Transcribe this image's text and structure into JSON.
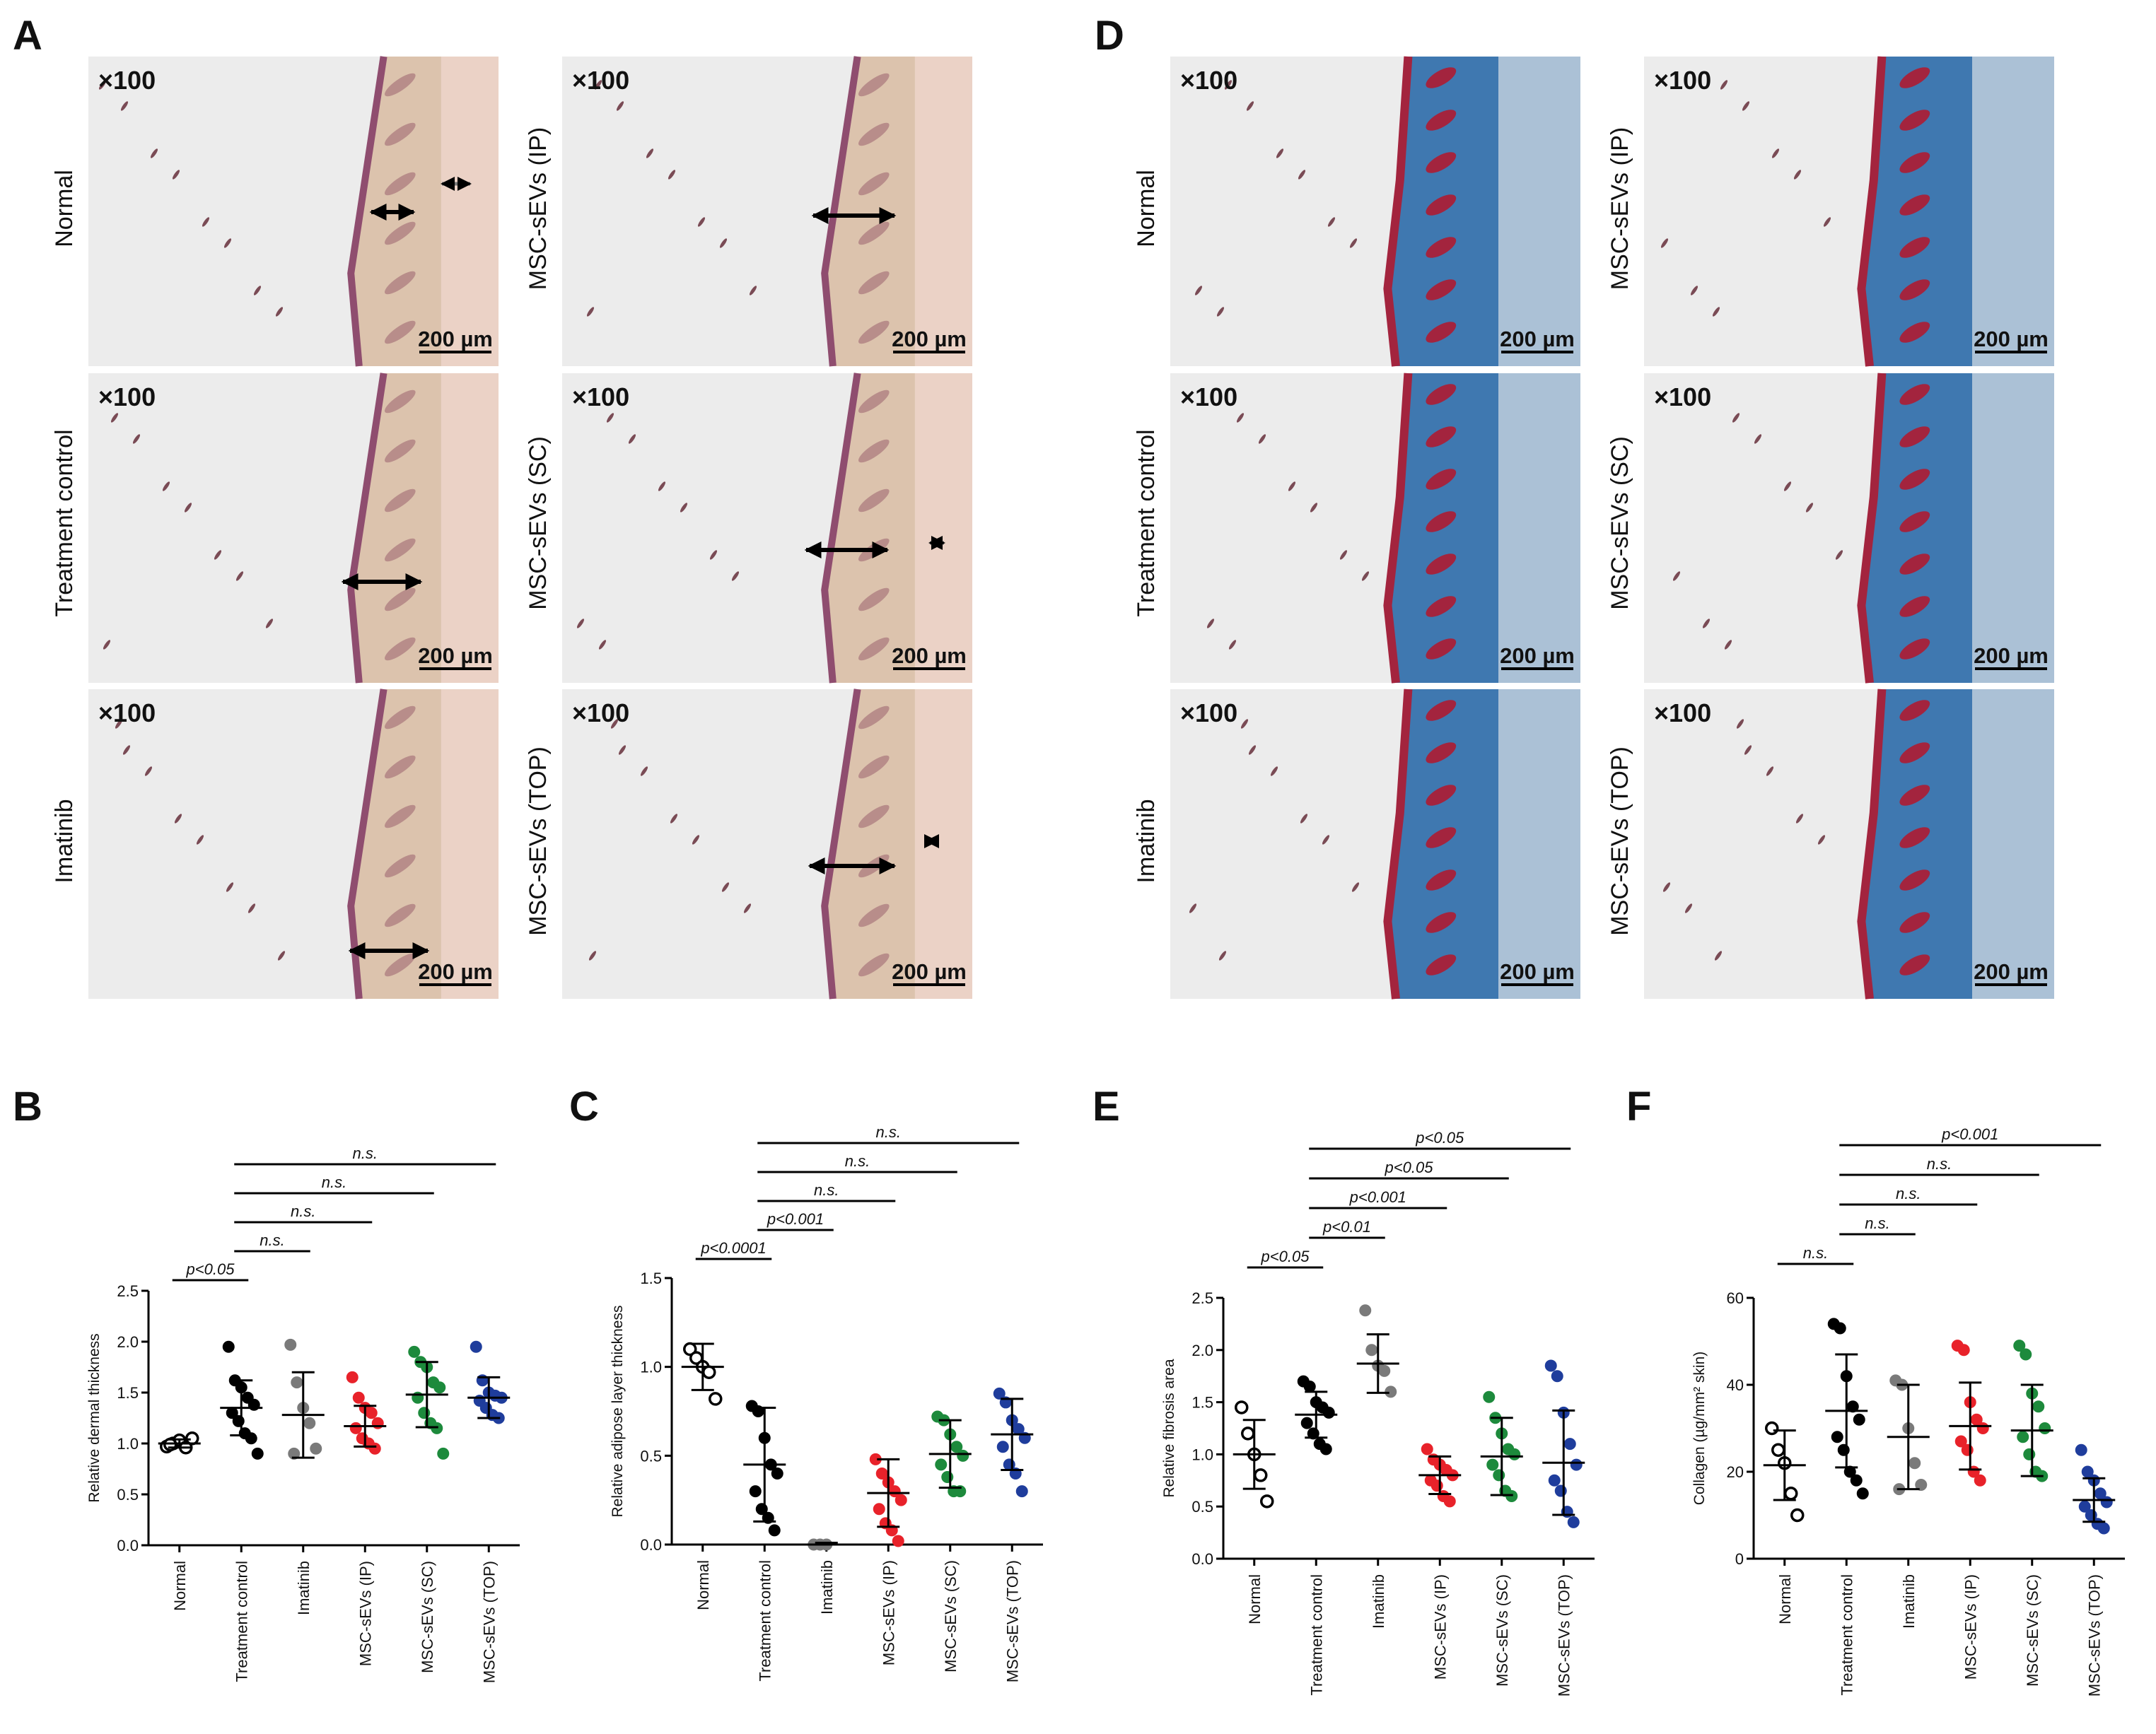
{
  "panel_letters": [
    "A",
    "B",
    "C",
    "D",
    "E",
    "F"
  ],
  "histology": {
    "magnification": "×100",
    "scale_bar": "200 µm",
    "he_rows_left": [
      "Normal",
      "Treatment control",
      "Imatinib"
    ],
    "he_rows_right": [
      "MSC-sEVs (IP)",
      "MSC-sEVs (SC)",
      "MSC-sEVs (TOP)"
    ],
    "mt_rows_left": [
      "Normal",
      "Treatment control",
      "Imatinib"
    ],
    "mt_rows_right": [
      "MSC-sEVs (IP)",
      "MSC-sEVs (SC)",
      "MSC-sEVs (TOP)"
    ],
    "stain_colors": {
      "he_tissue": "#dcc3ad",
      "he_edge": "#8f4d6f",
      "mt_collagen": "#3f78b0",
      "mt_muscle": "#a3243e",
      "background": "#ececec"
    }
  },
  "chart_data": [
    {
      "panel": "B",
      "type": "scatter",
      "ylabel": "Relative dermal thickness",
      "ylim": [
        0,
        2.5
      ],
      "yticks": [
        "0.0",
        "0.5",
        "1.0",
        "1.5",
        "2.0",
        "2.5"
      ],
      "categories": [
        "Normal",
        "Treatment control",
        "Imatinib",
        "MSC-sEVs (IP)",
        "MSC-sEVs (SC)",
        "MSC-sEVs (TOP)"
      ],
      "colors": [
        "#000000",
        "#000000",
        "#7a7a7a",
        "#e8222a",
        "#1d8a3c",
        "#1f3d9c"
      ],
      "hollow": [
        true,
        false,
        false,
        false,
        false,
        false
      ],
      "points": [
        [
          0.97,
          1.0,
          1.03,
          0.96,
          1.05,
          0.99
        ],
        [
          1.95,
          1.62,
          1.55,
          1.45,
          1.38,
          1.3,
          1.22,
          1.1,
          1.05,
          0.9
        ],
        [
          1.97,
          1.6,
          1.35,
          1.2,
          0.95,
          0.9
        ],
        [
          1.65,
          1.45,
          1.35,
          1.3,
          1.2,
          1.15,
          1.05,
          1.0,
          0.95
        ],
        [
          1.9,
          1.8,
          1.75,
          1.6,
          1.55,
          1.45,
          1.3,
          1.2,
          1.15,
          0.9
        ],
        [
          1.95,
          1.62,
          1.5,
          1.47,
          1.45,
          1.42,
          1.35,
          1.28,
          1.25
        ]
      ],
      "mean": [
        1.0,
        1.35,
        1.28,
        1.17,
        1.48,
        1.45
      ],
      "sd": [
        0.04,
        0.27,
        0.42,
        0.2,
        0.32,
        0.2
      ],
      "sig": [
        {
          "from": 0,
          "to": 1,
          "label": "p<0.05"
        },
        {
          "from": 1,
          "to": 2,
          "label": "n.s."
        },
        {
          "from": 1,
          "to": 3,
          "label": "n.s."
        },
        {
          "from": 1,
          "to": 4,
          "label": "n.s."
        },
        {
          "from": 1,
          "to": 5,
          "label": "n.s."
        }
      ]
    },
    {
      "panel": "C",
      "type": "scatter",
      "ylabel": "Relative adipose layer thickness",
      "ylim": [
        0,
        1.5
      ],
      "yticks": [
        "0.0",
        "0.5",
        "1.0",
        "1.5"
      ],
      "categories": [
        "Normal",
        "Treatment control",
        "Imatinib",
        "MSC-sEVs (IP)",
        "MSC-sEVs (SC)",
        "MSC-sEVs (TOP)"
      ],
      "colors": [
        "#000000",
        "#000000",
        "#7a7a7a",
        "#e8222a",
        "#1d8a3c",
        "#1f3d9c"
      ],
      "hollow": [
        true,
        false,
        false,
        false,
        false,
        false
      ],
      "points": [
        [
          1.1,
          1.05,
          1.0,
          0.97,
          0.82
        ],
        [
          0.78,
          0.75,
          0.6,
          0.45,
          0.4,
          0.3,
          0.2,
          0.15,
          0.08
        ],
        [
          0.0,
          0.0,
          0.0
        ],
        [
          0.48,
          0.4,
          0.35,
          0.3,
          0.25,
          0.2,
          0.12,
          0.08,
          0.02
        ],
        [
          0.72,
          0.7,
          0.62,
          0.55,
          0.5,
          0.45,
          0.38,
          0.3,
          0.3
        ],
        [
          0.85,
          0.8,
          0.7,
          0.65,
          0.6,
          0.55,
          0.45,
          0.4,
          0.3
        ]
      ],
      "mean": [
        1.0,
        0.45,
        0.0,
        0.29,
        0.51,
        0.62
      ],
      "sd": [
        0.13,
        0.32,
        0.01,
        0.19,
        0.19,
        0.2
      ],
      "sig": [
        {
          "from": 0,
          "to": 1,
          "label": "p<0.0001"
        },
        {
          "from": 1,
          "to": 2,
          "label": "p<0.001"
        },
        {
          "from": 1,
          "to": 3,
          "label": "n.s."
        },
        {
          "from": 1,
          "to": 4,
          "label": "n.s."
        },
        {
          "from": 1,
          "to": 5,
          "label": "n.s."
        }
      ]
    },
    {
      "panel": "E",
      "type": "scatter",
      "ylabel": "Relative fibrosis area",
      "ylim": [
        0,
        2.5
      ],
      "yticks": [
        "0.0",
        "0.5",
        "1.0",
        "1.5",
        "2.0",
        "2.5"
      ],
      "categories": [
        "Normal",
        "Treatment control",
        "Imatinib",
        "MSC-sEVs (IP)",
        "MSC-sEVs (SC)",
        "MSC-sEVs (TOP)"
      ],
      "colors": [
        "#000000",
        "#000000",
        "#7a7a7a",
        "#e8222a",
        "#1d8a3c",
        "#1f3d9c"
      ],
      "hollow": [
        true,
        false,
        false,
        false,
        false,
        false
      ],
      "points": [
        [
          1.45,
          1.2,
          1.0,
          0.8,
          0.55
        ],
        [
          1.7,
          1.65,
          1.5,
          1.45,
          1.4,
          1.3,
          1.2,
          1.1,
          1.05
        ],
        [
          2.38,
          2.0,
          1.85,
          1.8,
          1.6
        ],
        [
          1.05,
          0.95,
          0.9,
          0.85,
          0.8,
          0.75,
          0.7,
          0.6,
          0.55
        ],
        [
          1.55,
          1.35,
          1.2,
          1.05,
          1.0,
          0.9,
          0.8,
          0.65,
          0.6
        ],
        [
          1.85,
          1.75,
          1.4,
          1.1,
          0.9,
          0.75,
          0.65,
          0.45,
          0.35
        ]
      ],
      "mean": [
        1.0,
        1.38,
        1.87,
        0.8,
        0.98,
        0.92
      ],
      "sd": [
        0.33,
        0.22,
        0.28,
        0.18,
        0.37,
        0.5
      ],
      "sig": [
        {
          "from": 0,
          "to": 1,
          "label": "p<0.05"
        },
        {
          "from": 1,
          "to": 2,
          "label": "p<0.01"
        },
        {
          "from": 1,
          "to": 3,
          "label": "p<0.001"
        },
        {
          "from": 1,
          "to": 4,
          "label": "p<0.05"
        },
        {
          "from": 1,
          "to": 5,
          "label": "p<0.05"
        }
      ]
    },
    {
      "panel": "F",
      "type": "scatter",
      "ylabel": "Collagen (µg/mm² skin)",
      "ylim": [
        0,
        60
      ],
      "yticks": [
        "0",
        "20",
        "40",
        "60"
      ],
      "categories": [
        "Normal",
        "Treatment control",
        "Imatinib",
        "MSC-sEVs (IP)",
        "MSC-sEVs (SC)",
        "MSC-sEVs (TOP)"
      ],
      "colors": [
        "#000000",
        "#000000",
        "#7a7a7a",
        "#e8222a",
        "#1d8a3c",
        "#1f3d9c"
      ],
      "hollow": [
        true,
        false,
        false,
        false,
        false,
        false
      ],
      "points": [
        [
          30,
          25,
          22,
          15,
          10
        ],
        [
          54,
          53,
          42,
          35,
          32,
          28,
          25,
          20,
          18,
          15
        ],
        [
          41,
          40,
          30,
          22,
          17,
          16
        ],
        [
          49,
          48,
          36,
          32,
          30,
          27,
          25,
          20,
          18
        ],
        [
          49,
          47,
          38,
          35,
          30,
          28,
          24,
          20,
          19
        ],
        [
          25,
          20,
          18,
          15,
          13,
          12,
          10,
          8,
          7
        ]
      ],
      "mean": [
        21.5,
        34,
        28,
        30.5,
        29.5,
        13.5
      ],
      "sd": [
        8,
        13,
        12,
        10,
        10.5,
        5
      ],
      "sig": [
        {
          "from": 0,
          "to": 1,
          "label": "n.s."
        },
        {
          "from": 1,
          "to": 2,
          "label": "n.s."
        },
        {
          "from": 1,
          "to": 3,
          "label": "n.s."
        },
        {
          "from": 1,
          "to": 4,
          "label": "n.s."
        },
        {
          "from": 1,
          "to": 5,
          "label": "p<0.001"
        }
      ]
    }
  ]
}
